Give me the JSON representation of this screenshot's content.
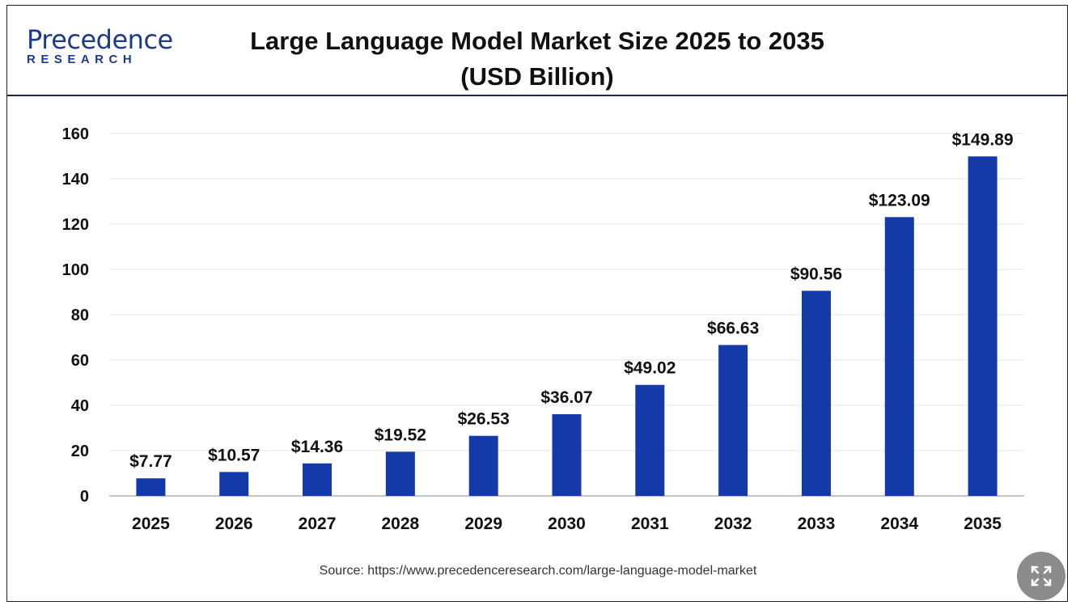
{
  "header": {
    "logo_top": "Precedence",
    "logo_bottom": "RESEARCH",
    "title_line1": "Large Language Model Market Size 2025 to 2035",
    "title_line2": "(USD Billion)"
  },
  "source": "Source: https://www.precedenceresearch.com/large-language-model-market",
  "expand_button": {
    "icon": "expand-icon"
  },
  "colors": {
    "bar": "#1439a8",
    "brand": "#1e3a8a",
    "grid": "#e6e6e6",
    "axis": "#b0b0b0"
  },
  "chart_data": {
    "type": "bar",
    "title": "Large Language Model Market Size 2025 to 2035 (USD Billion)",
    "categories": [
      "2025",
      "2026",
      "2027",
      "2028",
      "2029",
      "2030",
      "2031",
      "2032",
      "2033",
      "2034",
      "2035"
    ],
    "values": [
      7.77,
      10.57,
      14.36,
      19.52,
      26.53,
      36.07,
      49.02,
      66.63,
      90.56,
      123.09,
      149.89
    ],
    "data_labels": [
      "$7.77",
      "$10.57",
      "$14.36",
      "$19.52",
      "$26.53",
      "$36.07",
      "$49.02",
      "$66.63",
      "$90.56",
      "$123.09",
      "$149.89"
    ],
    "y_ticks": [
      "0",
      "20",
      "40",
      "60",
      "80",
      "100",
      "120",
      "140",
      "160"
    ],
    "ylim": [
      0,
      160
    ],
    "xlabel": "",
    "ylabel": "",
    "grid": true,
    "legend": false
  }
}
